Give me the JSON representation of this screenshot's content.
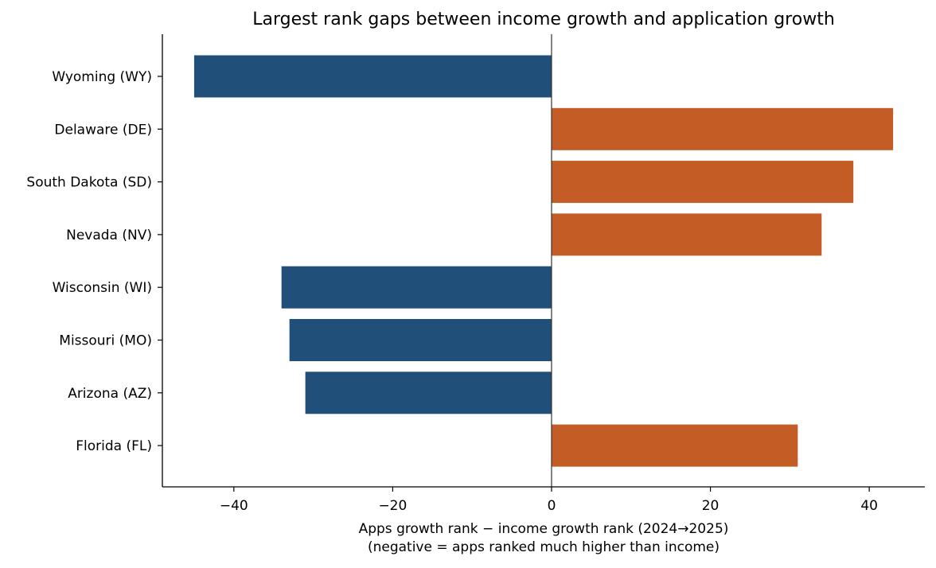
{
  "chart_data": {
    "type": "bar",
    "orientation": "horizontal",
    "title": "Largest rank gaps between income growth and application growth",
    "xlabel": "Apps growth rank − income growth rank (2024→2025)",
    "xlabel_line2": "(negative = apps ranked much higher than income)",
    "ylabel": "",
    "categories": [
      "Wyoming (WY)",
      "Delaware (DE)",
      "South Dakota (SD)",
      "Nevada (NV)",
      "Wisconsin (WI)",
      "Missouri (MO)",
      "Arizona (AZ)",
      "Florida (FL)"
    ],
    "values": [
      -45,
      43,
      38,
      34,
      -34,
      -33,
      -31,
      31
    ],
    "xlim": [
      -49,
      47
    ],
    "xticks": [
      -40,
      -20,
      0,
      20,
      40
    ],
    "xtick_labels": [
      "−40",
      "−20",
      "0",
      "20",
      "40"
    ],
    "colors": {
      "negative": "#20507a",
      "positive": "#c45c26"
    },
    "grid": false,
    "legend": "none"
  }
}
